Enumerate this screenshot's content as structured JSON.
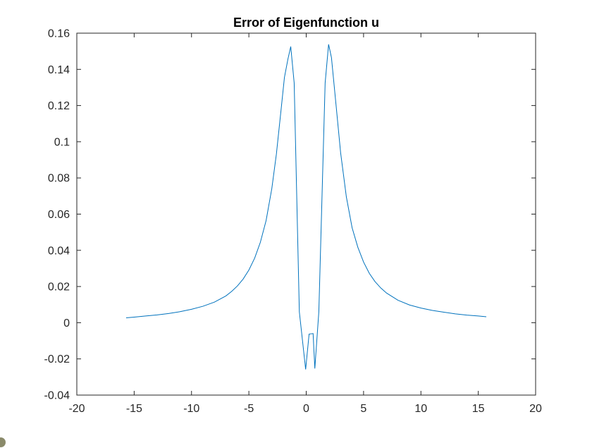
{
  "chart_data": {
    "type": "line",
    "title": "Error of Eigenfunction u",
    "xlabel": "",
    "ylabel": "",
    "xlim": [
      -20,
      20
    ],
    "ylim": [
      -0.04,
      0.16
    ],
    "xticks": [
      -20,
      -15,
      -10,
      -5,
      0,
      5,
      10,
      15,
      20
    ],
    "xtick_labels": [
      "-20",
      "-15",
      "-10",
      "-5",
      "0",
      "5",
      "10",
      "15",
      "20"
    ],
    "yticks": [
      -0.04,
      -0.02,
      0,
      0.02,
      0.04,
      0.06,
      0.08,
      0.1,
      0.12,
      0.14,
      0.16
    ],
    "ytick_labels": [
      "-0.04",
      "-0.02",
      "0",
      "0.02",
      "0.04",
      "0.06",
      "0.08",
      "0.1",
      "0.12",
      "0.14",
      "0.16"
    ],
    "grid": false,
    "legend": "none",
    "line_color": "#0072BD",
    "series": [
      {
        "x": [
          -15.7,
          -15.0,
          -14.0,
          -13.0,
          -12.0,
          -11.0,
          -10.0,
          -9.0,
          -8.0,
          -7.0,
          -6.5,
          -6.0,
          -5.5,
          -5.0,
          -4.5,
          -4.0,
          -3.5,
          -3.0,
          -2.6,
          -2.2,
          -1.9,
          -1.6,
          -1.35,
          -1.05,
          -0.6,
          -0.05,
          0.25,
          0.6,
          0.75,
          1.1,
          1.65,
          1.95,
          2.2,
          2.6,
          3.0,
          3.5,
          4.0,
          4.5,
          5.0,
          5.5,
          6.0,
          6.5,
          7.0,
          8.0,
          9.0,
          10.0,
          11.0,
          12.0,
          13.0,
          14.0,
          15.0,
          15.7
        ],
        "y": [
          0.0027,
          0.0031,
          0.0037,
          0.0043,
          0.0051,
          0.0061,
          0.0074,
          0.0091,
          0.0114,
          0.0148,
          0.0173,
          0.0203,
          0.0241,
          0.0291,
          0.0356,
          0.0444,
          0.0564,
          0.0741,
          0.0932,
          0.1172,
          0.1355,
          0.1455,
          0.1526,
          0.1325,
          0.006,
          -0.0258,
          -0.0063,
          -0.006,
          -0.0253,
          0.006,
          0.1325,
          0.1538,
          0.1465,
          0.1203,
          0.0939,
          0.0695,
          0.0525,
          0.0417,
          0.0335,
          0.0273,
          0.0227,
          0.0192,
          0.0164,
          0.0124,
          0.0098,
          0.0081,
          0.0068,
          0.0058,
          0.0049,
          0.0042,
          0.0037,
          0.0033
        ]
      }
    ]
  }
}
